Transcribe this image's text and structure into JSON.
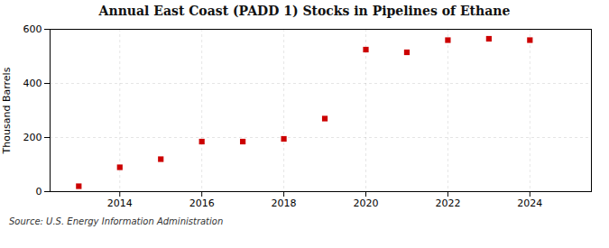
{
  "chart_data": {
    "type": "scatter",
    "title": "Annual East Coast (PADD 1) Stocks in Pipelines of Ethane",
    "ylabel": "Thousand Barrels",
    "caption": "Source: U.S. Energy Information Administration",
    "x": [
      2013,
      2014,
      2015,
      2016,
      2017,
      2018,
      2019,
      2020,
      2021,
      2022,
      2023,
      2024
    ],
    "values": [
      20,
      90,
      120,
      185,
      185,
      195,
      270,
      525,
      515,
      560,
      565,
      560
    ],
    "color": "#cc0000",
    "marker": "square",
    "xlim": [
      2012.3,
      2025.5
    ],
    "xticks": [
      2014,
      2016,
      2018,
      2020,
      2022,
      2024
    ],
    "ylim": [
      0,
      600
    ],
    "yticks": [
      0,
      200,
      400,
      600
    ],
    "grid": true
  }
}
